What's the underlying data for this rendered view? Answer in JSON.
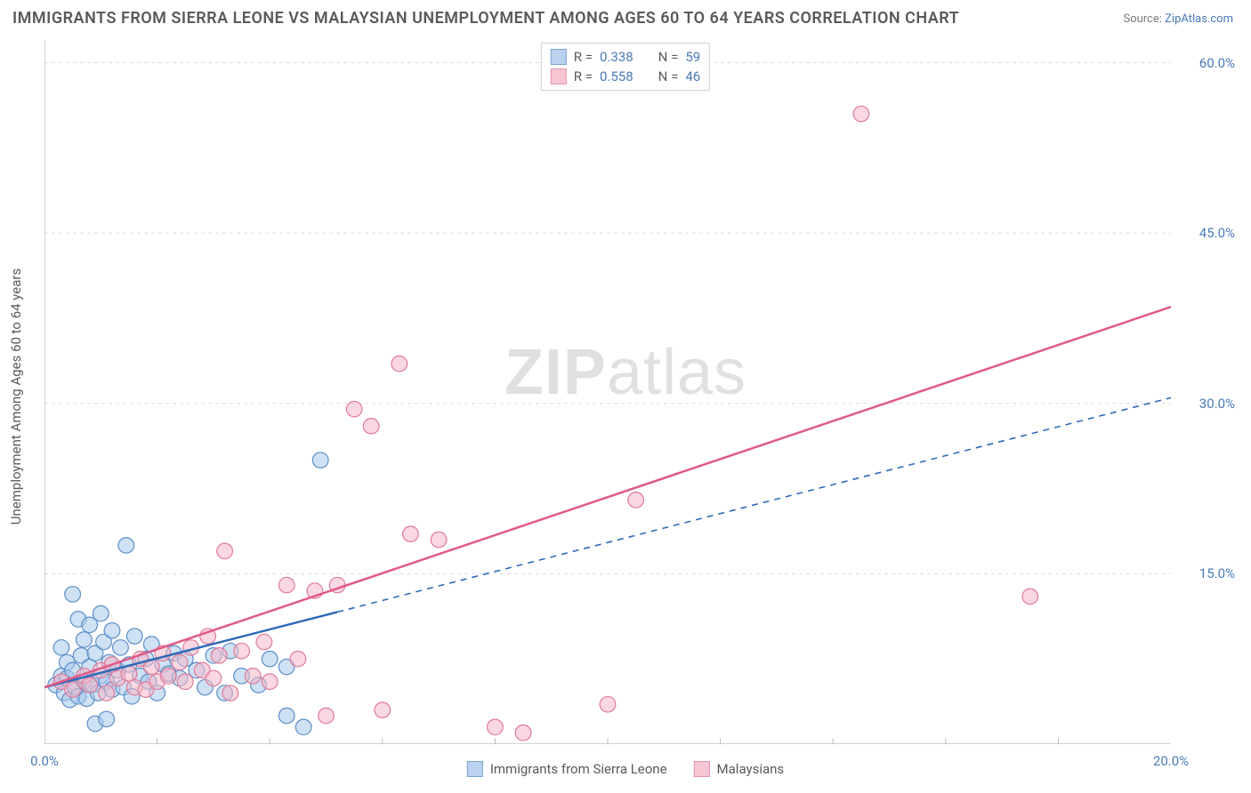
{
  "title": "IMMIGRANTS FROM SIERRA LEONE VS MALAYSIAN UNEMPLOYMENT AMONG AGES 60 TO 64 YEARS CORRELATION CHART",
  "source_label": "Source: ",
  "source_name": "ZipAtlas.com",
  "ylabel": "Unemployment Among Ages 60 to 64 years",
  "watermark_bold": "ZIP",
  "watermark_light": "atlas",
  "chart": {
    "type": "scatter",
    "xlim": [
      0,
      20
    ],
    "ylim": [
      0,
      62
    ],
    "xtick_labels": [
      "0.0%",
      "20.0%"
    ],
    "xtick_positions": [
      0,
      20
    ],
    "ytick_labels": [
      "15.0%",
      "30.0%",
      "45.0%",
      "60.0%"
    ],
    "ytick_positions": [
      15,
      30,
      45,
      60
    ],
    "grid_color": "#dcdcdc",
    "axis_color": "#b8b8b8",
    "background_color": "#ffffff",
    "marker_radius": 8,
    "marker_stroke_width": 1.2,
    "series": [
      {
        "name": "Immigrants from Sierra Leone",
        "fill": "#a8c8eb",
        "fill_opacity": 0.55,
        "stroke": "#5b8fc9",
        "r_value": "0.338",
        "n_value": "59",
        "trend_color": "#2e6bb8",
        "trend_style": "solid-then-dashed",
        "trend_solid_end_x": 5.2,
        "trend_start": [
          0,
          5
        ],
        "trend_end": [
          20,
          30.5
        ],
        "points": [
          [
            0.2,
            5.2
          ],
          [
            0.3,
            6.0
          ],
          [
            0.35,
            4.5
          ],
          [
            0.4,
            5.8
          ],
          [
            0.4,
            7.2
          ],
          [
            0.45,
            3.9
          ],
          [
            0.5,
            6.5
          ],
          [
            0.5,
            13.2
          ],
          [
            0.55,
            5.0
          ],
          [
            0.6,
            4.2
          ],
          [
            0.6,
            11.0
          ],
          [
            0.65,
            7.8
          ],
          [
            0.7,
            5.5
          ],
          [
            0.7,
            9.2
          ],
          [
            0.75,
            4.0
          ],
          [
            0.8,
            10.5
          ],
          [
            0.8,
            6.8
          ],
          [
            0.85,
            5.2
          ],
          [
            0.9,
            8.0
          ],
          [
            0.95,
            4.5
          ],
          [
            1.0,
            6.0
          ],
          [
            1.0,
            11.5
          ],
          [
            1.05,
            9.0
          ],
          [
            1.1,
            5.5
          ],
          [
            1.15,
            7.2
          ],
          [
            1.2,
            4.8
          ],
          [
            1.2,
            10.0
          ],
          [
            1.3,
            6.5
          ],
          [
            1.35,
            8.5
          ],
          [
            1.4,
            5.0
          ],
          [
            1.45,
            17.5
          ],
          [
            1.5,
            7.0
          ],
          [
            1.55,
            4.2
          ],
          [
            1.6,
            9.5
          ],
          [
            1.7,
            6.0
          ],
          [
            1.8,
            7.5
          ],
          [
            1.85,
            5.5
          ],
          [
            1.9,
            8.8
          ],
          [
            2.0,
            4.5
          ],
          [
            2.1,
            7.0
          ],
          [
            2.2,
            6.2
          ],
          [
            2.3,
            8.0
          ],
          [
            2.4,
            5.8
          ],
          [
            2.5,
            7.5
          ],
          [
            2.7,
            6.5
          ],
          [
            2.85,
            5.0
          ],
          [
            3.0,
            7.8
          ],
          [
            3.2,
            4.5
          ],
          [
            3.3,
            8.2
          ],
          [
            3.5,
            6.0
          ],
          [
            3.8,
            5.2
          ],
          [
            4.0,
            7.5
          ],
          [
            4.3,
            6.8
          ],
          [
            4.3,
            2.5
          ],
          [
            4.6,
            1.5
          ],
          [
            0.3,
            8.5
          ],
          [
            0.9,
            1.8
          ],
          [
            1.1,
            2.2
          ],
          [
            4.9,
            25.0
          ]
        ]
      },
      {
        "name": "Malaysians",
        "fill": "#f5b8c8",
        "fill_opacity": 0.55,
        "stroke": "#e07a9a",
        "r_value": "0.558",
        "n_value": "46",
        "trend_color": "#e05a85",
        "trend_style": "solid",
        "trend_start": [
          0,
          5
        ],
        "trend_end": [
          20,
          38.5
        ],
        "points": [
          [
            0.3,
            5.5
          ],
          [
            0.5,
            4.8
          ],
          [
            0.7,
            6.0
          ],
          [
            0.8,
            5.2
          ],
          [
            1.0,
            6.5
          ],
          [
            1.1,
            4.5
          ],
          [
            1.2,
            7.0
          ],
          [
            1.3,
            5.8
          ],
          [
            1.5,
            6.2
          ],
          [
            1.6,
            5.0
          ],
          [
            1.7,
            7.5
          ],
          [
            1.8,
            4.8
          ],
          [
            1.9,
            6.8
          ],
          [
            2.0,
            5.5
          ],
          [
            2.1,
            8.0
          ],
          [
            2.2,
            6.0
          ],
          [
            2.4,
            7.2
          ],
          [
            2.5,
            5.5
          ],
          [
            2.6,
            8.5
          ],
          [
            2.8,
            6.5
          ],
          [
            2.9,
            9.5
          ],
          [
            3.0,
            5.8
          ],
          [
            3.1,
            7.8
          ],
          [
            3.2,
            17.0
          ],
          [
            3.3,
            4.5
          ],
          [
            3.5,
            8.2
          ],
          [
            3.7,
            6.0
          ],
          [
            3.9,
            9.0
          ],
          [
            4.0,
            5.5
          ],
          [
            4.3,
            14.0
          ],
          [
            4.5,
            7.5
          ],
          [
            4.8,
            13.5
          ],
          [
            5.0,
            2.5
          ],
          [
            5.2,
            14.0
          ],
          [
            5.5,
            29.5
          ],
          [
            5.8,
            28.0
          ],
          [
            6.0,
            3.0
          ],
          [
            6.3,
            33.5
          ],
          [
            6.5,
            18.5
          ],
          [
            7.0,
            18.0
          ],
          [
            8.0,
            1.5
          ],
          [
            8.5,
            1.0
          ],
          [
            10.0,
            3.5
          ],
          [
            10.5,
            21.5
          ],
          [
            14.5,
            55.5
          ],
          [
            17.5,
            13.0
          ]
        ]
      }
    ]
  },
  "legend_bottom": [
    {
      "label": "Immigrants from Sierra Leone",
      "fill": "#a8c8eb",
      "stroke": "#5b8fc9"
    },
    {
      "label": "Malaysians",
      "fill": "#f5b8c8",
      "stroke": "#e07a9a"
    }
  ],
  "legend_top_labels": {
    "r": "R =",
    "n": "N ="
  }
}
